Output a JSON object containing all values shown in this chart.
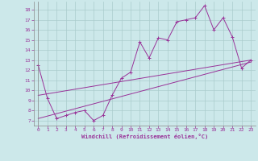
{
  "xlabel": "Windchill (Refroidissement éolien,°C)",
  "bg_color": "#cce8ea",
  "grid_color": "#aacccc",
  "line_color": "#993399",
  "spine_color": "#888888",
  "xlim": [
    -0.5,
    23.5
  ],
  "ylim": [
    6.5,
    18.8
  ],
  "yticks": [
    7,
    8,
    9,
    10,
    11,
    12,
    13,
    14,
    15,
    16,
    17,
    18
  ],
  "xticks": [
    0,
    1,
    2,
    3,
    4,
    5,
    6,
    7,
    8,
    9,
    10,
    11,
    12,
    13,
    14,
    15,
    16,
    17,
    18,
    19,
    20,
    21,
    22,
    23
  ],
  "series1_x": [
    0,
    1,
    2,
    3,
    4,
    5,
    6,
    7,
    8,
    9,
    10,
    11,
    12,
    13,
    14,
    15,
    16,
    17,
    18,
    19,
    20,
    21,
    22,
    23
  ],
  "series1_y": [
    12.5,
    9.2,
    7.2,
    7.5,
    7.8,
    8.0,
    7.0,
    7.5,
    9.5,
    11.2,
    11.8,
    14.8,
    13.2,
    15.2,
    15.0,
    16.8,
    17.0,
    17.2,
    18.4,
    16.0,
    17.2,
    15.3,
    12.2,
    13.0
  ],
  "series2_x": [
    0,
    23
  ],
  "series2_y": [
    7.2,
    12.8
  ],
  "series3_x": [
    0,
    23
  ],
  "series3_y": [
    9.5,
    13.0
  ]
}
